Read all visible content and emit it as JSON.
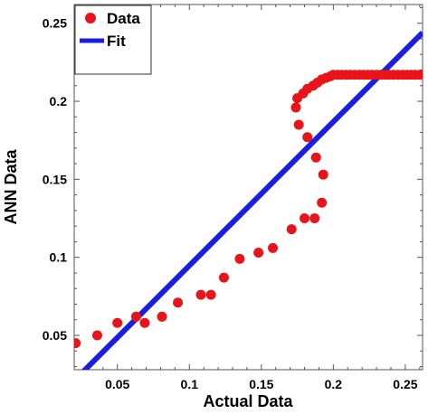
{
  "chart_data": {
    "type": "scatter",
    "xlabel": "Actual Data",
    "ylabel": "ANN Data",
    "xlim": [
      0.02,
      0.262
    ],
    "ylim": [
      0.028,
      0.262
    ],
    "xticks": [
      {
        "value": 0.05,
        "label": "0.05"
      },
      {
        "value": 0.1,
        "label": "0.1"
      },
      {
        "value": 0.15,
        "label": "0.15"
      },
      {
        "value": 0.2,
        "label": "0.2"
      },
      {
        "value": 0.25,
        "label": "0.25"
      }
    ],
    "yticks": [
      {
        "value": 0.05,
        "label": "0.05"
      },
      {
        "value": 0.1,
        "label": "0.1"
      },
      {
        "value": 0.15,
        "label": "0.15"
      },
      {
        "value": 0.2,
        "label": "0.2"
      },
      {
        "value": 0.25,
        "label": "0.25"
      }
    ],
    "grid": false,
    "legend_position": "top-left",
    "series": [
      {
        "name": "Data",
        "kind": "points",
        "color": "#e8141a",
        "x": [
          0.021,
          0.036,
          0.05,
          0.063,
          0.069,
          0.081,
          0.092,
          0.108,
          0.115,
          0.124,
          0.135,
          0.148,
          0.158,
          0.171,
          0.18,
          0.187,
          0.192,
          0.193,
          0.188,
          0.182,
          0.176,
          0.174,
          0.175,
          0.179,
          0.182,
          0.186,
          0.189,
          0.192,
          0.195,
          0.198,
          0.2,
          0.203,
          0.206,
          0.209,
          0.212,
          0.215,
          0.218,
          0.221,
          0.224,
          0.227,
          0.23,
          0.233,
          0.236,
          0.239,
          0.242,
          0.245,
          0.248,
          0.251,
          0.254,
          0.257,
          0.26
        ],
        "y": [
          0.045,
          0.05,
          0.058,
          0.062,
          0.058,
          0.062,
          0.071,
          0.076,
          0.076,
          0.087,
          0.099,
          0.103,
          0.106,
          0.118,
          0.125,
          0.125,
          0.135,
          0.153,
          0.164,
          0.177,
          0.185,
          0.196,
          0.202,
          0.205,
          0.208,
          0.21,
          0.212,
          0.214,
          0.215,
          0.216,
          0.217,
          0.217,
          0.217,
          0.217,
          0.217,
          0.217,
          0.217,
          0.217,
          0.217,
          0.217,
          0.217,
          0.217,
          0.217,
          0.217,
          0.217,
          0.217,
          0.217,
          0.217,
          0.217,
          0.217,
          0.217
        ]
      },
      {
        "name": "Fit",
        "kind": "line",
        "color": "#1a1ee0",
        "x": [
          0.02,
          0.262
        ],
        "y": [
          0.021,
          0.244
        ]
      }
    ]
  }
}
